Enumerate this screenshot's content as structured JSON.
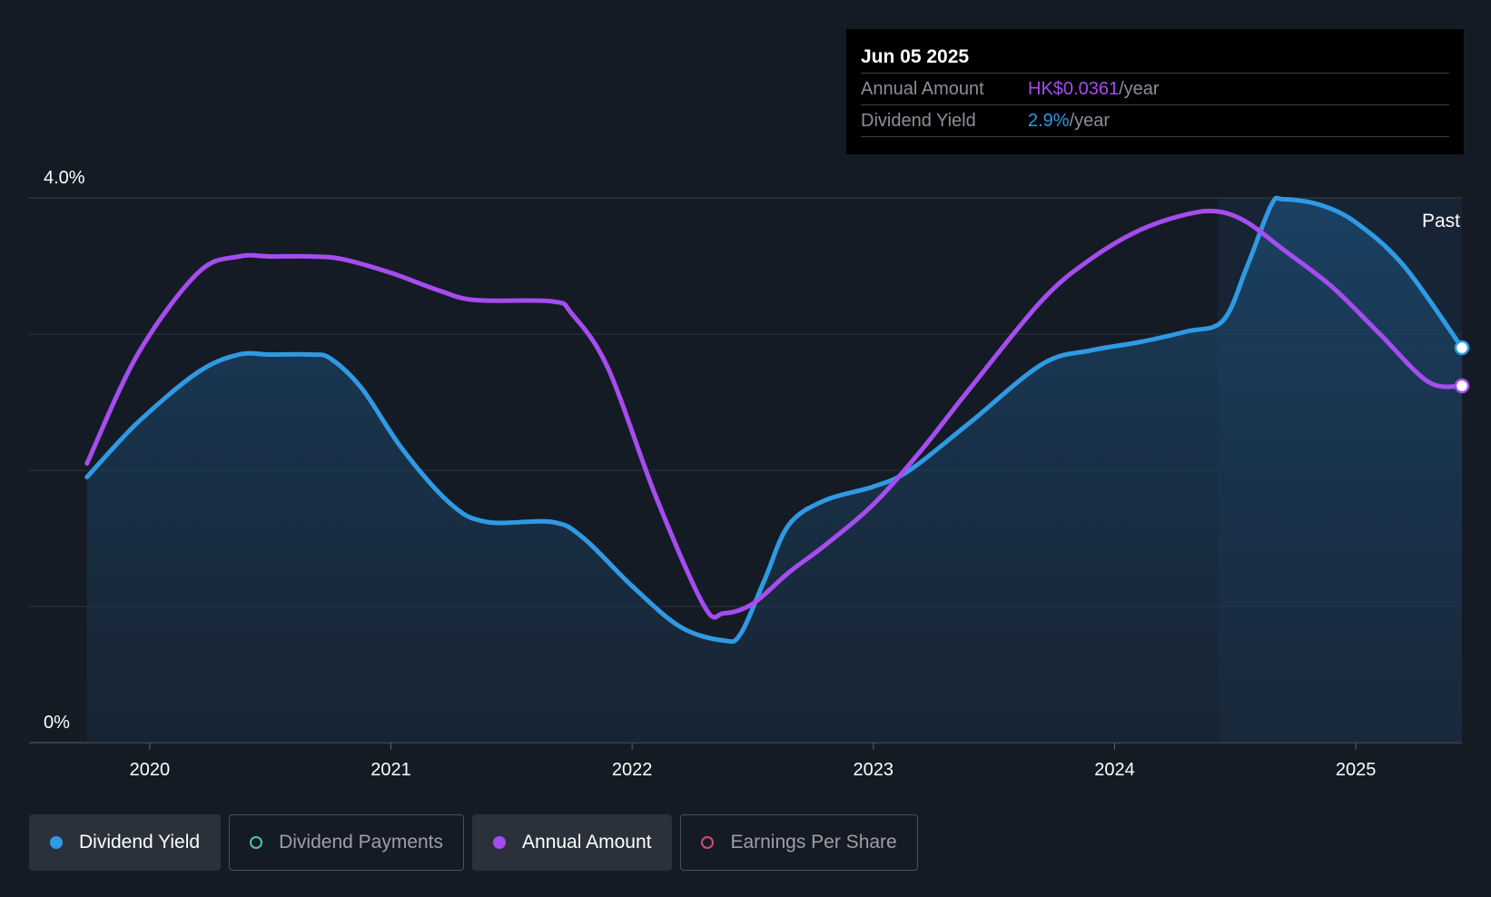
{
  "tooltip": {
    "date": "Jun 05 2025",
    "annual_amount_label": "Annual Amount",
    "annual_amount_value": "HK$0.0361",
    "dividend_yield_label": "Dividend Yield",
    "dividend_yield_value": "2.9%",
    "unit": "/year"
  },
  "past_label": "Past",
  "legend": [
    {
      "label": "Dividend Yield",
      "active": true,
      "color": "#2f9ae4",
      "filled": true
    },
    {
      "label": "Dividend Payments",
      "active": false,
      "color": "#4fc3b0",
      "filled": false
    },
    {
      "label": "Annual Amount",
      "active": true,
      "color": "#a64cf0",
      "filled": true
    },
    {
      "label": "Earnings Per Share",
      "active": false,
      "color": "#d9467f",
      "filled": false
    }
  ],
  "colors": {
    "background": "#151b24",
    "yield_line": "#2f9ae4",
    "amount_line": "#a64cf0"
  },
  "chart_data": {
    "type": "line",
    "y_tick_labels": [
      "4.0%",
      "0%"
    ],
    "ylim": [
      0,
      4.0
    ],
    "x_tick_labels": [
      "2020",
      "2021",
      "2022",
      "2023",
      "2024",
      "2025"
    ],
    "xlim": [
      2019.5,
      2025.44
    ],
    "grid": true,
    "series": [
      {
        "name": "Dividend Yield",
        "color": "#2f9ae4",
        "area": true,
        "x": [
          2019.74,
          2019.95,
          2020.2,
          2020.37,
          2020.5,
          2020.67,
          2020.75,
          2020.88,
          2021.05,
          2021.25,
          2021.4,
          2021.67,
          2021.8,
          2022.0,
          2022.2,
          2022.38,
          2022.45,
          2022.55,
          2022.65,
          2022.8,
          2023.0,
          2023.15,
          2023.4,
          2023.7,
          2023.9,
          2024.1,
          2024.3,
          2024.45,
          2024.55,
          2024.65,
          2024.7,
          2024.85,
          2025.0,
          2025.2,
          2025.44
        ],
        "y": [
          1.95,
          2.35,
          2.72,
          2.85,
          2.85,
          2.85,
          2.82,
          2.6,
          2.15,
          1.75,
          1.62,
          1.62,
          1.5,
          1.15,
          0.85,
          0.75,
          0.8,
          1.2,
          1.6,
          1.78,
          1.88,
          2.0,
          2.35,
          2.78,
          2.88,
          2.94,
          3.02,
          3.1,
          3.5,
          3.95,
          3.99,
          3.95,
          3.82,
          3.5,
          2.9
        ]
      },
      {
        "name": "Annual Amount",
        "color": "#a64cf0",
        "area": false,
        "x": [
          2019.74,
          2019.95,
          2020.2,
          2020.37,
          2020.5,
          2020.67,
          2020.8,
          2021.0,
          2021.2,
          2021.35,
          2021.67,
          2021.75,
          2021.9,
          2022.1,
          2022.3,
          2022.38,
          2022.5,
          2022.65,
          2022.8,
          2023.0,
          2023.2,
          2023.4,
          2023.7,
          2023.9,
          2024.1,
          2024.3,
          2024.43,
          2024.55,
          2024.7,
          2024.9,
          2025.1,
          2025.3,
          2025.44
        ],
        "y": [
          2.05,
          2.85,
          3.45,
          3.57,
          3.57,
          3.57,
          3.55,
          3.45,
          3.32,
          3.25,
          3.24,
          3.15,
          2.75,
          1.8,
          1.0,
          0.95,
          1.02,
          1.25,
          1.45,
          1.75,
          2.15,
          2.6,
          3.25,
          3.55,
          3.76,
          3.88,
          3.9,
          3.82,
          3.62,
          3.35,
          3.0,
          2.65,
          2.62
        ]
      }
    ]
  }
}
